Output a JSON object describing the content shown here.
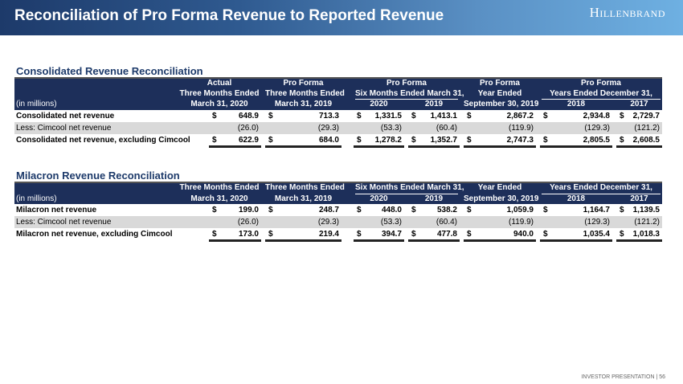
{
  "header": {
    "title": "Reconciliation of Pro Forma Revenue to Reported Revenue",
    "logo": "Hillenbrand"
  },
  "tables": [
    {
      "title": "Consolidated Revenue Reconciliation",
      "units": "(in millions)",
      "line1": [
        "Actual",
        "Pro Forma",
        "Pro Forma",
        "Pro Forma",
        "Pro Forma"
      ],
      "line2": [
        "Three Months Ended",
        "Three Months Ended",
        "Six Months Ended March 31,",
        "Year Ended",
        "Years Ended December 31,"
      ],
      "line3": [
        "March 31, 2020",
        "March 31, 2019",
        "2020",
        "2019",
        "September 30, 2019",
        "2018",
        "2017"
      ],
      "rows": [
        {
          "label": "Consolidated net revenue",
          "style": "bold",
          "values": [
            "648.9",
            "713.3",
            "1,331.5",
            "1,413.1",
            "2,867.2",
            "2,934.8",
            "2,729.7"
          ],
          "dollar": true
        },
        {
          "label": "Less: Cimcool net revenue",
          "style": "gray",
          "values": [
            "(26.0)",
            "(29.3)",
            "(53.3)",
            "(60.4)",
            "(119.9)",
            "(129.3)",
            "(121.2)"
          ],
          "dollar": false
        },
        {
          "label": "Consolidated net revenue, excluding Cimcool",
          "style": "bold total",
          "values": [
            "622.9",
            "684.0",
            "1,278.2",
            "1,352.7",
            "2,747.3",
            "2,805.5",
            "2,608.5"
          ],
          "dollar": true
        }
      ]
    },
    {
      "title": "Milacron Revenue Reconciliation",
      "units": "(in millions)",
      "line2": [
        "Three Months Ended",
        "Three Months Ended",
        "Six Months Ended March 31,",
        "Year Ended",
        "Years Ended December 31,"
      ],
      "line3": [
        "March 31, 2020",
        "March 31, 2019",
        "2020",
        "2019",
        "September 30, 2019",
        "2018",
        "2017"
      ],
      "rows": [
        {
          "label": "Milacron net revenue",
          "style": "bold",
          "values": [
            "199.0",
            "248.7",
            "448.0",
            "538.2",
            "1,059.9",
            "1,164.7",
            "1,139.5"
          ],
          "dollar": true
        },
        {
          "label": "Less: Cimcool net revenue",
          "style": "gray",
          "values": [
            "(26.0)",
            "(29.3)",
            "(53.3)",
            "(60.4)",
            "(119.9)",
            "(129.3)",
            "(121.2)"
          ],
          "dollar": false
        },
        {
          "label": "Milacron net revenue, excluding Cimcool",
          "style": "bold total",
          "values": [
            "173.0",
            "219.4",
            "394.7",
            "477.8",
            "940.0",
            "1,035.4",
            "1,018.3"
          ],
          "dollar": true
        }
      ]
    }
  ],
  "currency_symbol": "$",
  "footer": "INVESTOR PRESENTATION | 56"
}
